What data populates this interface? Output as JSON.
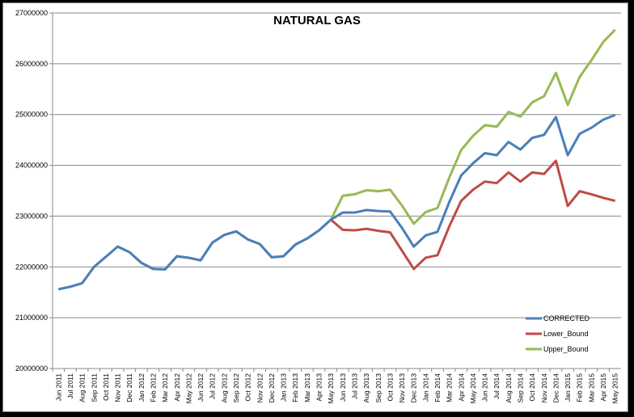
{
  "chart_data": {
    "type": "line",
    "title": "NATURAL GAS",
    "xlabel": "",
    "ylabel": "",
    "ylim": [
      20000000,
      27000000
    ],
    "yticks": [
      "20000000",
      "21000000",
      "22000000",
      "23000000",
      "24000000",
      "25000000",
      "26000000",
      "27000000"
    ],
    "grid": "horizontal",
    "legend_position": "bottom-right",
    "categories": [
      "Jun 2011",
      "Jul 2011",
      "Aug 2011",
      "Sep 2011",
      "Oct 2011",
      "Nov 2011",
      "Dec 2011",
      "Jan 2012",
      "Feb 2012",
      "Mar 2012",
      "Apr 2012",
      "May 2012",
      "Jun 2012",
      "Jul 2012",
      "Aug 2012",
      "Sep 2012",
      "Oct 2012",
      "Nov 2012",
      "Dec 2012",
      "Jan 2013",
      "Feb 2013",
      "Mar 2013",
      "Apr 2013",
      "May 2013",
      "Jun 2013",
      "Jul 2013",
      "Aug 2013",
      "Sep 2013",
      "Oct 2013",
      "Nov 2013",
      "Dec 2013",
      "Jan 2014",
      "Feb 2014",
      "Mar 2014",
      "Apr 2014",
      "May 2014",
      "Jun 2014",
      "Jul 2014",
      "Aug 2014",
      "Sep 2014",
      "Oct 2014",
      "Nov 2014",
      "Dec 2014",
      "Jan 2015",
      "Feb 2015",
      "Mar 2015",
      "Apr 2015",
      "May 2015"
    ],
    "series": [
      {
        "name": "CORRECTED",
        "color": "#4a7ebb",
        "values": [
          21560000,
          21610000,
          21680000,
          22000000,
          22200000,
          22400000,
          22290000,
          22080000,
          21960000,
          21950000,
          22210000,
          22180000,
          22130000,
          22480000,
          22630000,
          22700000,
          22540000,
          22450000,
          22190000,
          22210000,
          22440000,
          22560000,
          22720000,
          22930000,
          23070000,
          23070000,
          23120000,
          23100000,
          23090000,
          22770000,
          22400000,
          22620000,
          22690000,
          23280000,
          23800000,
          24040000,
          24240000,
          24200000,
          24460000,
          24310000,
          24540000,
          24600000,
          24950000,
          24200000,
          24620000,
          24740000,
          24900000,
          24990000
        ]
      },
      {
        "name": "Lower_Bound",
        "color": "#be4b48",
        "values": [
          null,
          null,
          null,
          null,
          null,
          null,
          null,
          null,
          null,
          null,
          null,
          null,
          null,
          null,
          null,
          null,
          null,
          null,
          null,
          null,
          null,
          null,
          null,
          22930000,
          22730000,
          22720000,
          22750000,
          22710000,
          22680000,
          22320000,
          21960000,
          22180000,
          22230000,
          22800000,
          23300000,
          23520000,
          23680000,
          23650000,
          23860000,
          23680000,
          23860000,
          23830000,
          24090000,
          23200000,
          23490000,
          23430000,
          23360000,
          23300000
        ]
      },
      {
        "name": "Upper_Bound",
        "color": "#98b954",
        "values": [
          21560000,
          21610000,
          21680000,
          22000000,
          22200000,
          22400000,
          22290000,
          22080000,
          21960000,
          21950000,
          22210000,
          22180000,
          22130000,
          22480000,
          22630000,
          22700000,
          22540000,
          22450000,
          22190000,
          22210000,
          22440000,
          22560000,
          22720000,
          22930000,
          23400000,
          23430000,
          23510000,
          23490000,
          23520000,
          23210000,
          22850000,
          23080000,
          23160000,
          23760000,
          24300000,
          24580000,
          24790000,
          24760000,
          25050000,
          24960000,
          25240000,
          25360000,
          25820000,
          25190000,
          25740000,
          26070000,
          26430000,
          26670000
        ]
      }
    ]
  }
}
